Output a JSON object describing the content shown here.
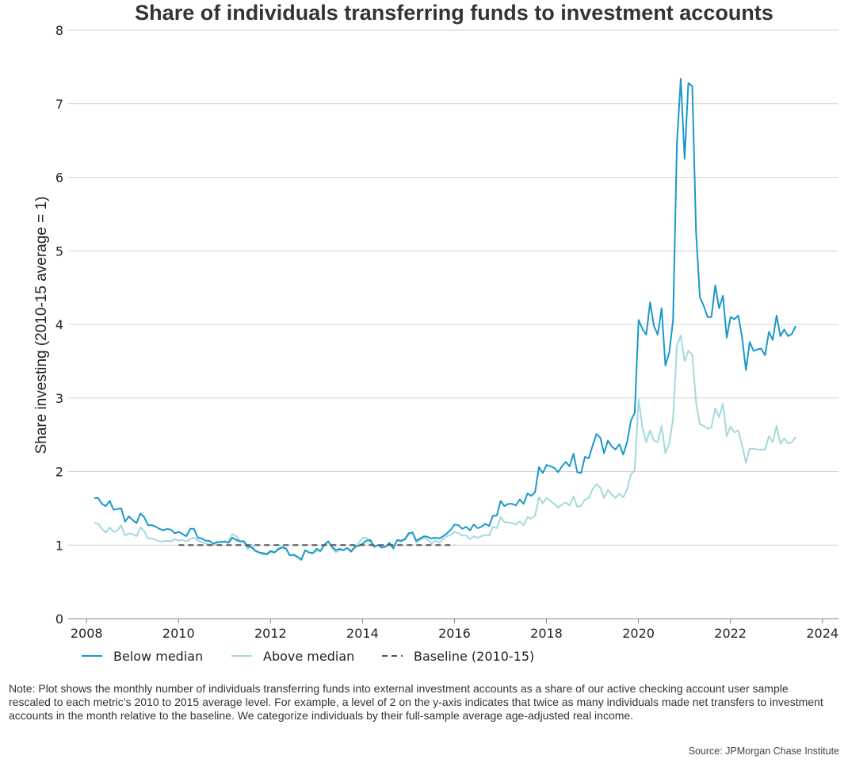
{
  "chart_data": {
    "type": "line",
    "title": "Share of individuals transferring funds to investment accounts",
    "ylabel": "Share investing (2010-15 average = 1)",
    "xlabel": "",
    "xlim": [
      2007.6,
      2024.35
    ],
    "ylim": [
      0,
      8
    ],
    "x_ticks": [
      2008,
      2010,
      2012,
      2014,
      2016,
      2018,
      2020,
      2022,
      2024
    ],
    "y_ticks": [
      0,
      1,
      2,
      3,
      4,
      5,
      6,
      7,
      8
    ],
    "grid": "horizontal",
    "legend_position": "bottom-left",
    "x_start": 2008.17,
    "x_step_months": 1,
    "series": [
      {
        "name": "Below median",
        "color": "#1a98cc",
        "style": "solid",
        "values": [
          1.64,
          1.64,
          1.56,
          1.53,
          1.6,
          1.48,
          1.49,
          1.5,
          1.32,
          1.39,
          1.34,
          1.3,
          1.43,
          1.38,
          1.27,
          1.27,
          1.25,
          1.22,
          1.2,
          1.22,
          1.21,
          1.16,
          1.18,
          1.15,
          1.12,
          1.22,
          1.22,
          1.1,
          1.09,
          1.06,
          1.06,
          1.02,
          1.04,
          1.04,
          1.05,
          1.03,
          1.1,
          1.07,
          1.05,
          1.05,
          0.98,
          0.97,
          0.92,
          0.9,
          0.89,
          0.88,
          0.92,
          0.9,
          0.94,
          0.97,
          0.95,
          0.86,
          0.87,
          0.84,
          0.8,
          0.93,
          0.9,
          0.89,
          0.95,
          0.92,
          1.0,
          1.05,
          0.98,
          0.93,
          0.95,
          0.93,
          0.96,
          0.91,
          0.98,
          0.99,
          1.02,
          1.06,
          1.07,
          0.98,
          1.0,
          0.97,
          0.98,
          1.03,
          0.96,
          1.07,
          1.06,
          1.08,
          1.16,
          1.17,
          1.06,
          1.09,
          1.12,
          1.11,
          1.09,
          1.1,
          1.09,
          1.12,
          1.16,
          1.21,
          1.28,
          1.27,
          1.22,
          1.25,
          1.2,
          1.28,
          1.23,
          1.25,
          1.29,
          1.26,
          1.4,
          1.4,
          1.6,
          1.53,
          1.56,
          1.56,
          1.54,
          1.62,
          1.56,
          1.7,
          1.67,
          1.72,
          2.06,
          1.98,
          2.09,
          2.07,
          2.05,
          1.99,
          2.07,
          2.13,
          2.07,
          2.24,
          1.99,
          1.98,
          2.2,
          2.18,
          2.35,
          2.51,
          2.46,
          2.25,
          2.42,
          2.34,
          2.3,
          2.37,
          2.23,
          2.4,
          2.69,
          2.8,
          4.06,
          3.94,
          3.86,
          4.3,
          3.98,
          3.86,
          4.22,
          3.44,
          3.62,
          4.06,
          6.45,
          7.34,
          6.25,
          7.28,
          7.24,
          5.25,
          4.37,
          4.25,
          4.1,
          4.1,
          4.53,
          4.22,
          4.39,
          3.82,
          4.1,
          4.07,
          4.12,
          3.83,
          3.38,
          3.76,
          3.64,
          3.66,
          3.67,
          3.58,
          3.9,
          3.79,
          4.12,
          3.84,
          3.93,
          3.84,
          3.87,
          3.98
        ]
      },
      {
        "name": "Above median",
        "color": "#a3d9dc",
        "style": "solid",
        "values": [
          1.3,
          1.29,
          1.22,
          1.17,
          1.24,
          1.18,
          1.2,
          1.27,
          1.13,
          1.16,
          1.15,
          1.12,
          1.24,
          1.19,
          1.09,
          1.09,
          1.07,
          1.05,
          1.05,
          1.06,
          1.05,
          1.08,
          1.06,
          1.07,
          1.05,
          1.08,
          1.1,
          1.06,
          1.04,
          1.02,
          1.01,
          1.0,
          1.03,
          1.05,
          1.04,
          1.05,
          1.15,
          1.12,
          1.06,
          1.05,
          0.94,
          1.01,
          0.93,
          0.9,
          0.87,
          0.87,
          0.9,
          0.9,
          0.96,
          0.98,
          0.96,
          0.86,
          0.86,
          0.84,
          0.8,
          0.93,
          0.9,
          0.89,
          0.92,
          0.92,
          1.01,
          1.05,
          0.96,
          0.9,
          0.93,
          0.93,
          0.96,
          0.93,
          0.96,
          1.03,
          1.1,
          1.1,
          1.04,
          0.97,
          1.0,
          0.96,
          0.98,
          1.03,
          0.94,
          1.07,
          1.04,
          1.07,
          1.14,
          1.18,
          1.03,
          1.07,
          1.1,
          1.07,
          1.02,
          1.06,
          1.03,
          1.08,
          1.12,
          1.14,
          1.18,
          1.16,
          1.13,
          1.13,
          1.08,
          1.12,
          1.1,
          1.12,
          1.14,
          1.13,
          1.25,
          1.23,
          1.38,
          1.31,
          1.31,
          1.3,
          1.28,
          1.32,
          1.27,
          1.38,
          1.36,
          1.4,
          1.65,
          1.57,
          1.64,
          1.6,
          1.56,
          1.51,
          1.55,
          1.58,
          1.54,
          1.66,
          1.52,
          1.53,
          1.62,
          1.64,
          1.76,
          1.83,
          1.78,
          1.64,
          1.75,
          1.69,
          1.64,
          1.7,
          1.65,
          1.76,
          1.96,
          2.02,
          2.98,
          2.6,
          2.4,
          2.56,
          2.42,
          2.4,
          2.62,
          2.25,
          2.38,
          2.72,
          3.71,
          3.85,
          3.5,
          3.64,
          3.59,
          2.94,
          2.64,
          2.62,
          2.58,
          2.6,
          2.86,
          2.74,
          2.92,
          2.48,
          2.61,
          2.53,
          2.56,
          2.36,
          2.12,
          2.31,
          2.31,
          2.3,
          2.3,
          2.3,
          2.48,
          2.4,
          2.62,
          2.38,
          2.45,
          2.38,
          2.4,
          2.47
        ]
      },
      {
        "name": "Baseline (2010-15)",
        "color": "#555555",
        "style": "dashed",
        "x": [
          2010.0,
          2016.0
        ],
        "values": [
          1.0,
          1.0
        ]
      }
    ]
  },
  "note": "Note: Plot shows the monthly number of individuals transferring funds into external investment accounts as a share of our active checking account user sample rescaled to each metric’s 2010 to 2015 average level. For example, a level of 2 on the y-axis indicates that twice as many individuals made net transfers to investment accounts in the month relative to the baseline. We categorize individuals by their full-sample average age-adjusted real income.",
  "source": "Source: JPMorgan Chase Institute"
}
